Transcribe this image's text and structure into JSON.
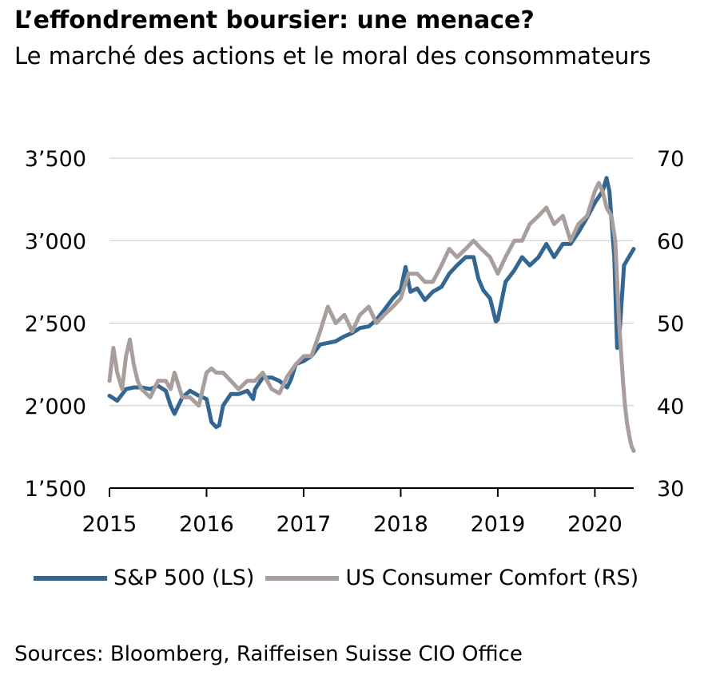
{
  "header": {
    "title": "L’effondrement boursier: une menace?",
    "subtitle": "Le marché des actions et le moral des consommateurs"
  },
  "source": "Sources: Bloomberg, Raiffeisen Suisse CIO Office",
  "chart_data": {
    "type": "line",
    "title": "L’effondrement boursier: une menace?",
    "subtitle": "Le marché des actions et le moral des consommateurs",
    "x_ticks": [
      "2015",
      "2016",
      "2017",
      "2018",
      "2019",
      "2020"
    ],
    "y_left": {
      "range": [
        1500,
        3500
      ],
      "ticks": [
        1500,
        2000,
        2500,
        3000,
        3500
      ],
      "tick_labels": [
        "1’500",
        "2’000",
        "2’500",
        "3’000",
        "3’500"
      ]
    },
    "y_right": {
      "range": [
        30,
        70
      ],
      "ticks": [
        30,
        40,
        50,
        60,
        70
      ],
      "tick_labels": [
        "30",
        "40",
        "50",
        "60",
        "70"
      ]
    },
    "x_range": [
      2015.0,
      2020.4
    ],
    "grid": true,
    "legend_position": "bottom",
    "series": [
      {
        "name": "S&P 500 (LS)",
        "axis": "left",
        "color": "#336791",
        "x": [
          2015.0,
          2015.08,
          2015.17,
          2015.25,
          2015.33,
          2015.42,
          2015.5,
          2015.58,
          2015.63,
          2015.67,
          2015.75,
          2015.83,
          2015.92,
          2016.0,
          2016.05,
          2016.1,
          2016.13,
          2016.17,
          2016.25,
          2016.33,
          2016.42,
          2016.48,
          2016.5,
          2016.58,
          2016.67,
          2016.75,
          2016.83,
          2016.87,
          2016.92,
          2017.0,
          2017.08,
          2017.17,
          2017.25,
          2017.33,
          2017.42,
          2017.5,
          2017.58,
          2017.67,
          2017.75,
          2017.83,
          2017.92,
          2018.0,
          2018.05,
          2018.1,
          2018.17,
          2018.25,
          2018.33,
          2018.42,
          2018.5,
          2018.58,
          2018.67,
          2018.75,
          2018.8,
          2018.85,
          2018.92,
          2018.98,
          2019.0,
          2019.08,
          2019.17,
          2019.25,
          2019.33,
          2019.42,
          2019.5,
          2019.58,
          2019.67,
          2019.75,
          2019.83,
          2019.92,
          2020.0,
          2020.08,
          2020.12,
          2020.15,
          2020.2,
          2020.23,
          2020.25,
          2020.3,
          2020.35,
          2020.4
        ],
        "values": [
          2060,
          2030,
          2100,
          2110,
          2110,
          2100,
          2120,
          2090,
          2000,
          1950,
          2050,
          2090,
          2060,
          2040,
          1900,
          1870,
          1880,
          2000,
          2070,
          2070,
          2090,
          2040,
          2100,
          2170,
          2170,
          2150,
          2110,
          2160,
          2250,
          2270,
          2300,
          2370,
          2380,
          2390,
          2420,
          2440,
          2470,
          2480,
          2520,
          2580,
          2650,
          2700,
          2840,
          2690,
          2710,
          2640,
          2690,
          2720,
          2800,
          2850,
          2900,
          2900,
          2770,
          2700,
          2650,
          2510,
          2520,
          2750,
          2820,
          2900,
          2850,
          2900,
          2980,
          2900,
          2980,
          2980,
          3050,
          3140,
          3230,
          3300,
          3380,
          3300,
          2900,
          2350,
          2400,
          2850,
          2900,
          2950
        ]
      },
      {
        "name": "US Consumer Comfort (RS)",
        "axis": "right",
        "color": "#a89f9d",
        "x": [
          2015.0,
          2015.04,
          2015.08,
          2015.13,
          2015.17,
          2015.21,
          2015.25,
          2015.29,
          2015.33,
          2015.42,
          2015.5,
          2015.58,
          2015.63,
          2015.67,
          2015.75,
          2015.83,
          2015.92,
          2016.0,
          2016.05,
          2016.1,
          2016.17,
          2016.25,
          2016.33,
          2016.42,
          2016.5,
          2016.58,
          2016.67,
          2016.75,
          2016.83,
          2016.92,
          2017.0,
          2017.08,
          2017.17,
          2017.25,
          2017.33,
          2017.42,
          2017.5,
          2017.58,
          2017.67,
          2017.75,
          2017.83,
          2017.92,
          2018.0,
          2018.08,
          2018.17,
          2018.25,
          2018.33,
          2018.42,
          2018.5,
          2018.58,
          2018.67,
          2018.75,
          2018.83,
          2018.92,
          2019.0,
          2019.08,
          2019.17,
          2019.25,
          2019.33,
          2019.42,
          2019.5,
          2019.58,
          2019.67,
          2019.75,
          2019.83,
          2019.92,
          2020.0,
          2020.04,
          2020.08,
          2020.12,
          2020.17,
          2020.21,
          2020.25,
          2020.29,
          2020.31,
          2020.33,
          2020.36,
          2020.38,
          2020.4
        ],
        "values": [
          43,
          47,
          44,
          42,
          46,
          48,
          45,
          43,
          42,
          41,
          43,
          43,
          42,
          44,
          41,
          41,
          40,
          44,
          44.5,
          44,
          44,
          43,
          42,
          43,
          43,
          44,
          42,
          41.5,
          43.5,
          45,
          46,
          46,
          49,
          52,
          50,
          51,
          49,
          51,
          52,
          50,
          51,
          52,
          53,
          56,
          56,
          55,
          55,
          57,
          59,
          58,
          59,
          60,
          59,
          58,
          56,
          58,
          60,
          60,
          62,
          63,
          64,
          62,
          63,
          60,
          62,
          63,
          66,
          67,
          66,
          64,
          63,
          60,
          50,
          43,
          40,
          38,
          36,
          35,
          34.5
        ]
      }
    ]
  }
}
